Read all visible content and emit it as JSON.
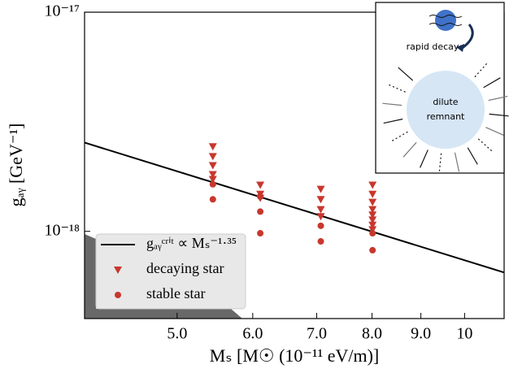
{
  "chart_data": {
    "type": "scatter",
    "xlabel": "Mₛ  [M☉ (10⁻¹¹ eV/m)]",
    "ylabel": "gₐᵧ  [GeV⁻¹]",
    "xscale": "log",
    "yscale": "log",
    "xlim": [
      4,
      11
    ],
    "ylim": [
      4e-19,
      1e-17
    ],
    "xticks": [
      {
        "value": 5,
        "label": "5.0"
      },
      {
        "value": 6,
        "label": "6.0"
      },
      {
        "value": 7,
        "label": "7.0"
      },
      {
        "value": 8,
        "label": "8.0"
      },
      {
        "value": 9,
        "label": "9.0"
      },
      10
    ],
    "yticks": [
      {
        "value": 1e-18,
        "label": "10⁻¹⁸"
      },
      {
        "value": 1e-17,
        "label": "10⁻¹⁷"
      }
    ],
    "series": [
      {
        "name": "gₐᵧᶜʳⁱᵗ ∝ Mₛ⁻¹·³⁵",
        "marker": "line",
        "color": "#000000",
        "x": [
          4,
          11
        ],
        "values": [
          2.54e-18,
          6.49e-19
        ]
      },
      {
        "name": "decaying star",
        "marker": "triangle",
        "color": "#c8372d",
        "x": [
          5.45,
          5.45,
          5.45,
          5.45,
          5.45,
          6.11,
          6.11,
          6.11,
          7.07,
          7.07,
          7.07,
          7.07,
          8.01,
          8.01,
          8.01,
          8.01,
          8.01,
          8.01,
          8.01,
          8.01
        ],
        "values": [
          2.44e-18,
          2.2e-18,
          2e-18,
          1.82e-18,
          1.73e-18,
          1.63e-18,
          1.48e-18,
          1.42e-18,
          1.56e-18,
          1.4e-18,
          1.26e-18,
          1.17e-18,
          1.63e-18,
          1.48e-18,
          1.36e-18,
          1.26e-18,
          1.19e-18,
          1.13e-18,
          1.07e-18,
          1.02e-18
        ]
      },
      {
        "name": "stable star",
        "marker": "circle",
        "color": "#c8372d",
        "x": [
          5.45,
          5.45,
          6.11,
          6.11,
          6.11,
          7.07,
          7.07,
          8.01,
          8.01
        ],
        "values": [
          1.64e-18,
          1.4e-18,
          1.44e-18,
          1.23e-18,
          9.8e-19,
          1.06e-18,
          9e-19,
          9.8e-19,
          8.2e-19
        ]
      }
    ]
  },
  "inset": {
    "top_label": "rapid decay",
    "center_label": [
      "dilute",
      "remnant"
    ]
  }
}
